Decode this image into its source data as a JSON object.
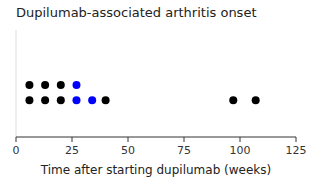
{
  "chart_data": {
    "type": "scatter",
    "title": "Dupilumab-associated arthritis onset",
    "x_label": "Time after starting dupilumab (weeks)",
    "x": [
      6,
      13,
      20,
      6,
      13,
      20,
      27,
      27,
      34,
      40,
      97,
      107
    ],
    "values": [
      1.7,
      1.7,
      1.7,
      1.2,
      1.2,
      1.2,
      1.7,
      1.2,
      1.2,
      1.2,
      1.2,
      1.2
    ],
    "colors": [
      "#000000",
      "#000000",
      "#000000",
      "#000000",
      "#000000",
      "#000000",
      "#0000ff",
      "#0000ff",
      "#0000ff",
      "#000000",
      "#000000",
      "#000000"
    ],
    "xlim": [
      0,
      125
    ],
    "xticks": [
      0,
      25,
      50,
      75,
      100,
      125
    ],
    "ylim": [
      0.0,
      3.5
    ],
    "yticks": [],
    "tick_labels": "x",
    "grid": false
  }
}
